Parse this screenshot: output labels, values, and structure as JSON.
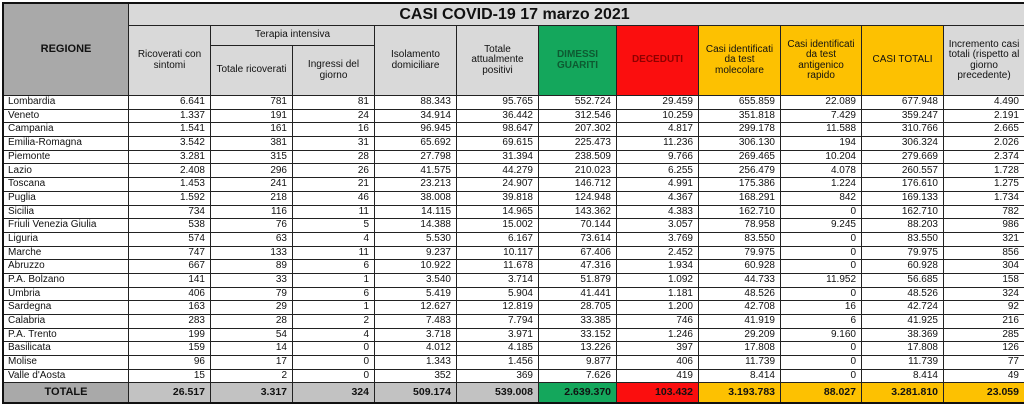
{
  "title": "CASI COVID-19 17 marzo 2021",
  "colors": {
    "green": "#14a75c",
    "green_text": "#0d5a31",
    "red": "#fb0e0e",
    "red_text": "#8e0000",
    "yellow": "#fdc101",
    "gray_dark": "#a9a9a9",
    "gray_mid": "#c2c2c2",
    "gray_light": "#d9d9d9"
  },
  "header": {
    "region": "REGIONE",
    "ricoverati": "Ricoverati con sintomi",
    "terapia_group": "Terapia intensiva",
    "terapia_totale": "Totale ricoverati",
    "terapia_ingressi": "Ingressi del giorno",
    "isolamento": "Isolamento domiciliare",
    "attualmente_positivi": "Totale attualmente positivi",
    "dimessi_guariti": "DIMESSI GUARITI",
    "deceduti": "DECEDUTI",
    "test_molecolare": "Casi identificati da test molecolare",
    "test_antigenico": "Casi identificati da test antigenico rapido",
    "casi_totali": "CASI TOTALI",
    "incremento": "Incremento casi totali (rispetto al giorno precedente)"
  },
  "rows": [
    {
      "region": "Lombardia",
      "values": [
        "6.641",
        "781",
        "81",
        "88.343",
        "95.765",
        "552.724",
        "29.459",
        "655.859",
        "22.089",
        "677.948",
        "4.490"
      ]
    },
    {
      "region": "Veneto",
      "values": [
        "1.337",
        "191",
        "24",
        "34.914",
        "36.442",
        "312.546",
        "10.259",
        "351.818",
        "7.429",
        "359.247",
        "2.191"
      ]
    },
    {
      "region": "Campania",
      "values": [
        "1.541",
        "161",
        "16",
        "96.945",
        "98.647",
        "207.302",
        "4.817",
        "299.178",
        "11.588",
        "310.766",
        "2.665"
      ]
    },
    {
      "region": "Emilia-Romagna",
      "values": [
        "3.542",
        "381",
        "31",
        "65.692",
        "69.615",
        "225.473",
        "11.236",
        "306.130",
        "194",
        "306.324",
        "2.026"
      ]
    },
    {
      "region": "Piemonte",
      "values": [
        "3.281",
        "315",
        "28",
        "27.798",
        "31.394",
        "238.509",
        "9.766",
        "269.465",
        "10.204",
        "279.669",
        "2.374"
      ]
    },
    {
      "region": "Lazio",
      "values": [
        "2.408",
        "296",
        "26",
        "41.575",
        "44.279",
        "210.023",
        "6.255",
        "256.479",
        "4.078",
        "260.557",
        "1.728"
      ]
    },
    {
      "region": "Toscana",
      "values": [
        "1.453",
        "241",
        "21",
        "23.213",
        "24.907",
        "146.712",
        "4.991",
        "175.386",
        "1.224",
        "176.610",
        "1.275"
      ]
    },
    {
      "region": "Puglia",
      "values": [
        "1.592",
        "218",
        "46",
        "38.008",
        "39.818",
        "124.948",
        "4.367",
        "168.291",
        "842",
        "169.133",
        "1.734"
      ]
    },
    {
      "region": "Sicilia",
      "values": [
        "734",
        "116",
        "11",
        "14.115",
        "14.965",
        "143.362",
        "4.383",
        "162.710",
        "0",
        "162.710",
        "782"
      ]
    },
    {
      "region": "Friuli Venezia Giulia",
      "values": [
        "538",
        "76",
        "5",
        "14.388",
        "15.002",
        "70.144",
        "3.057",
        "78.958",
        "9.245",
        "88.203",
        "986"
      ]
    },
    {
      "region": "Liguria",
      "values": [
        "574",
        "63",
        "4",
        "5.530",
        "6.167",
        "73.614",
        "3.769",
        "83.550",
        "0",
        "83.550",
        "321"
      ]
    },
    {
      "region": "Marche",
      "values": [
        "747",
        "133",
        "11",
        "9.237",
        "10.117",
        "67.406",
        "2.452",
        "79.975",
        "0",
        "79.975",
        "856"
      ]
    },
    {
      "region": "Abruzzo",
      "values": [
        "667",
        "89",
        "6",
        "10.922",
        "11.678",
        "47.316",
        "1.934",
        "60.928",
        "0",
        "60.928",
        "304"
      ]
    },
    {
      "region": "P.A. Bolzano",
      "values": [
        "141",
        "33",
        "1",
        "3.540",
        "3.714",
        "51.879",
        "1.092",
        "44.733",
        "11.952",
        "56.685",
        "158"
      ]
    },
    {
      "region": "Umbria",
      "values": [
        "406",
        "79",
        "6",
        "5.419",
        "5.904",
        "41.441",
        "1.181",
        "48.526",
        "0",
        "48.526",
        "324"
      ]
    },
    {
      "region": "Sardegna",
      "values": [
        "163",
        "29",
        "1",
        "12.627",
        "12.819",
        "28.705",
        "1.200",
        "42.708",
        "16",
        "42.724",
        "92"
      ]
    },
    {
      "region": "Calabria",
      "values": [
        "283",
        "28",
        "2",
        "7.483",
        "7.794",
        "33.385",
        "746",
        "41.919",
        "6",
        "41.925",
        "216"
      ]
    },
    {
      "region": "P.A. Trento",
      "values": [
        "199",
        "54",
        "4",
        "3.718",
        "3.971",
        "33.152",
        "1.246",
        "29.209",
        "9.160",
        "38.369",
        "285"
      ]
    },
    {
      "region": "Basilicata",
      "values": [
        "159",
        "14",
        "0",
        "4.012",
        "4.185",
        "13.226",
        "397",
        "17.808",
        "0",
        "17.808",
        "126"
      ]
    },
    {
      "region": "Molise",
      "values": [
        "96",
        "17",
        "0",
        "1.343",
        "1.456",
        "9.877",
        "406",
        "11.739",
        "0",
        "11.739",
        "77"
      ]
    },
    {
      "region": "Valle d'Aosta",
      "values": [
        "15",
        "2",
        "0",
        "352",
        "369",
        "7.626",
        "419",
        "8.414",
        "0",
        "8.414",
        "49"
      ]
    }
  ],
  "total": {
    "label": "TOTALE",
    "values": [
      "26.517",
      "3.317",
      "324",
      "509.174",
      "539.008",
      "2.639.370",
      "103.432",
      "3.193.783",
      "88.027",
      "3.281.810",
      "23.059"
    ]
  }
}
